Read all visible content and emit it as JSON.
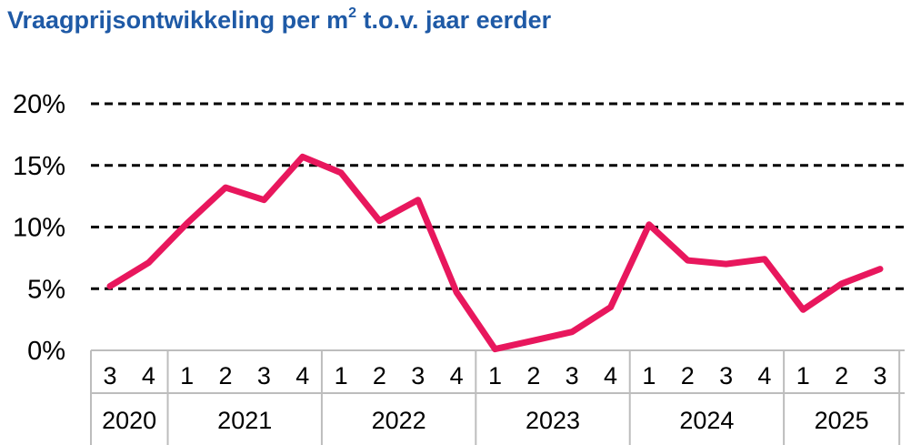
{
  "chart_data": {
    "type": "line",
    "title": {
      "before_sup": "Vraagprijsontwikkeling per m",
      "sup": "2",
      "after_sup": " t.o.v. jaar eerder"
    },
    "y_ticks": [
      "0%",
      "5%",
      "10%",
      "15%",
      "20%"
    ],
    "ylim": [
      0,
      20
    ],
    "grid": "dashed horizontal",
    "colors": {
      "line": "#e8175d",
      "title": "#1f5aa6",
      "axis": "#bdbdbd",
      "text": "#000000"
    },
    "x_quarters": [
      "3",
      "4",
      "1",
      "2",
      "3",
      "4",
      "1",
      "2",
      "3",
      "4",
      "1",
      "2",
      "3",
      "4",
      "1",
      "2",
      "3",
      "4",
      "1",
      "2",
      "3"
    ],
    "x_years": [
      {
        "label": "2020",
        "count": 2
      },
      {
        "label": "2021",
        "count": 4
      },
      {
        "label": "2022",
        "count": 4
      },
      {
        "label": "2023",
        "count": 4
      },
      {
        "label": "2024",
        "count": 4
      },
      {
        "label": "2025",
        "count": 3
      }
    ],
    "series": [
      {
        "values": [
          5.2,
          7.1,
          10.3,
          13.2,
          12.2,
          15.7,
          14.4,
          10.5,
          12.2,
          4.7,
          0.1,
          0.8,
          1.5,
          3.5,
          10.2,
          7.3,
          7.0,
          7.4,
          3.3,
          5.4,
          6.6
        ]
      }
    ]
  }
}
